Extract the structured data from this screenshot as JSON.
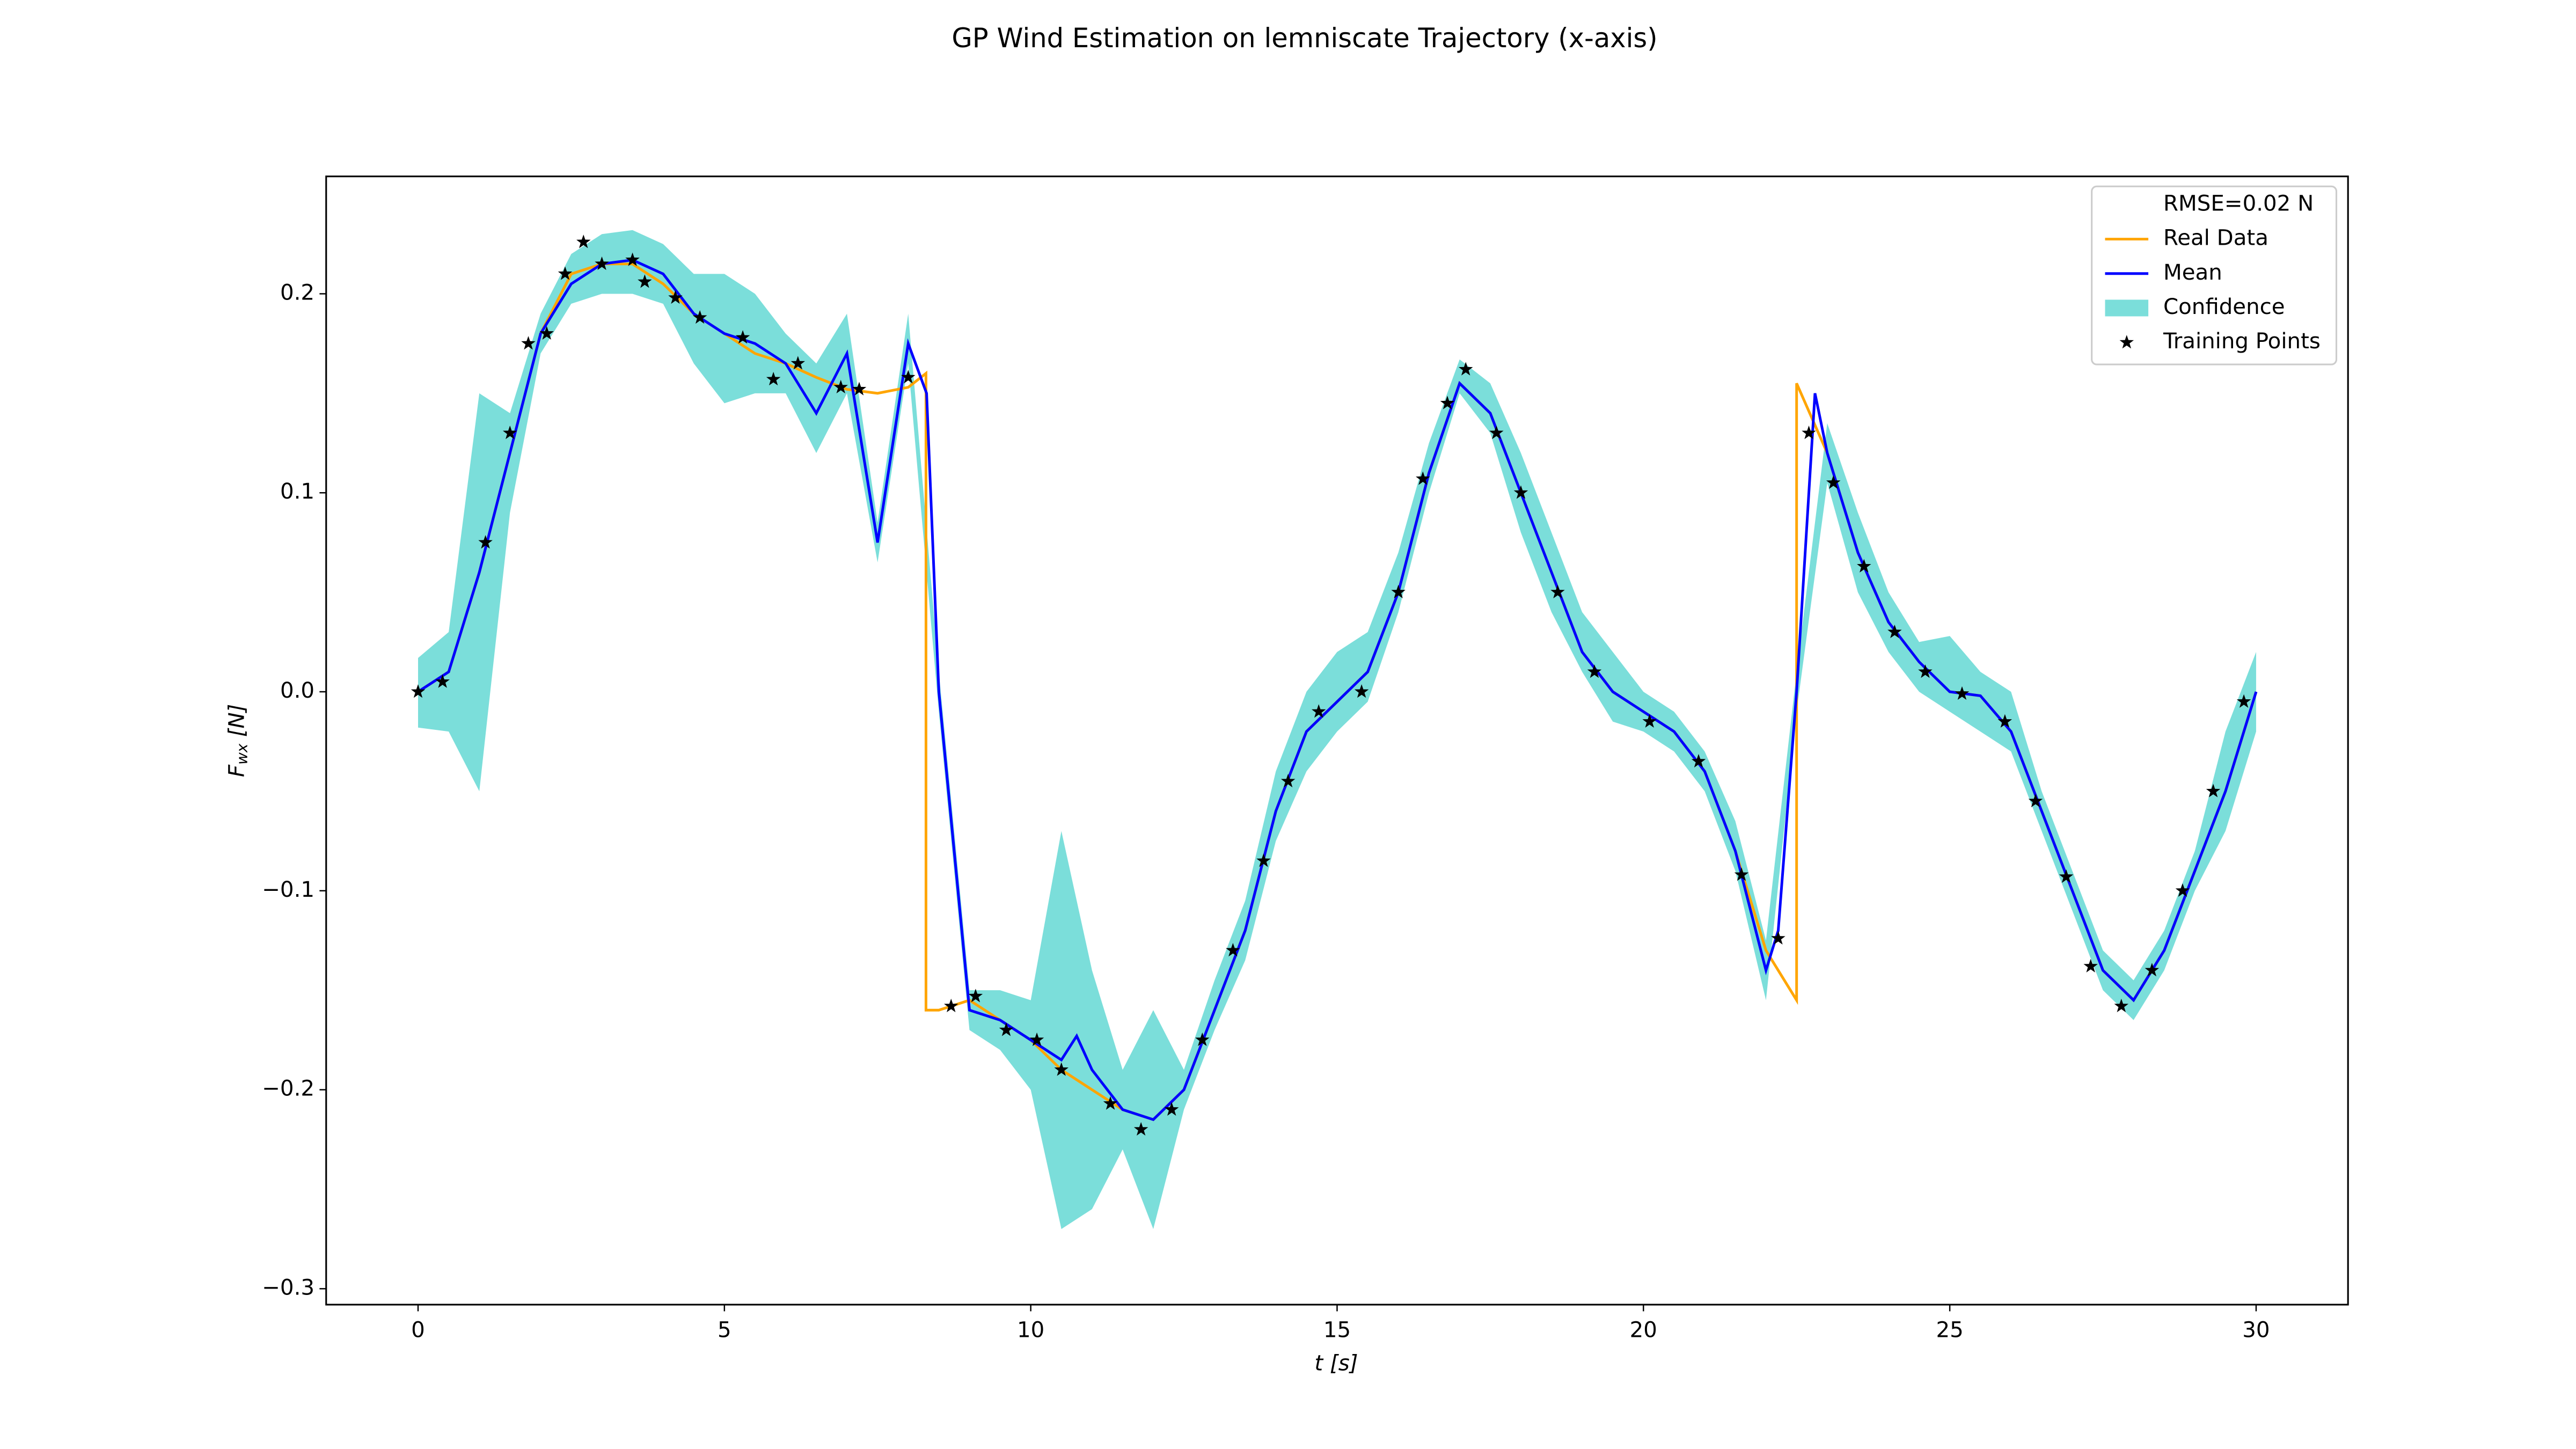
{
  "chart_data": {
    "type": "line",
    "title": "GP Wind Estimation on lemniscate Trajectory (x-axis)",
    "xlabel": "t [s]",
    "ylabel": {
      "symbol": "F",
      "subscript": "wx",
      "unit": "[N]"
    },
    "annotation": "RMSE=0.02 N",
    "legend": "upper right",
    "xlim": [
      -1.5,
      31.5
    ],
    "ylim": [
      -0.308,
      0.259
    ],
    "xticks": [
      0,
      5,
      10,
      15,
      20,
      25,
      30
    ],
    "yticks": [
      {
        "value": -0.3,
        "label": "−0.3"
      },
      {
        "value": -0.2,
        "label": "−0.2"
      },
      {
        "value": -0.1,
        "label": "−0.1"
      },
      {
        "value": 0,
        "label": "0.0"
      },
      0.1,
      0.2
    ],
    "series": [
      {
        "name": "Confidence",
        "style": "band",
        "color": "#48d1cc",
        "x": [
          0,
          0.5,
          1,
          1.5,
          2,
          2.5,
          3,
          3.5,
          4,
          4.5,
          5,
          5.5,
          6,
          6.5,
          7,
          7.5,
          8,
          8.5,
          9,
          9.5,
          10,
          10.5,
          11,
          11.5,
          12,
          12.5,
          13,
          13.5,
          14,
          14.5,
          15,
          15.5,
          16,
          16.5,
          17,
          17.5,
          18,
          18.5,
          19,
          19.5,
          20,
          20.5,
          21,
          21.5,
          22,
          22.5,
          23,
          23.5,
          24,
          24.5,
          25,
          25.5,
          26,
          26.5,
          27,
          27.5,
          28,
          28.5,
          29,
          29.5,
          30
        ],
        "upper": [
          0.017,
          0.03,
          0.15,
          0.14,
          0.19,
          0.22,
          0.23,
          0.232,
          0.225,
          0.21,
          0.21,
          0.2,
          0.18,
          0.165,
          0.19,
          0.085,
          0.19,
          0.01,
          -0.15,
          -0.15,
          -0.155,
          -0.07,
          -0.14,
          -0.19,
          -0.16,
          -0.19,
          -0.145,
          -0.105,
          -0.04,
          0,
          0.02,
          0.03,
          0.07,
          0.125,
          0.167,
          0.155,
          0.12,
          0.08,
          0.04,
          0.02,
          0,
          -0.01,
          -0.03,
          -0.065,
          -0.125,
          0.01,
          0.135,
          0.09,
          0.05,
          0.025,
          0.028,
          0.01,
          0,
          -0.05,
          -0.09,
          -0.13,
          -0.145,
          -0.12,
          -0.08,
          -0.02,
          0.02
        ],
        "lower": [
          -0.018,
          -0.02,
          -0.05,
          0.09,
          0.17,
          0.195,
          0.2,
          0.2,
          0.195,
          0.165,
          0.145,
          0.15,
          0.15,
          0.12,
          0.15,
          0.065,
          0.165,
          -0.01,
          -0.17,
          -0.18,
          -0.2,
          -0.27,
          -0.26,
          -0.23,
          -0.27,
          -0.21,
          -0.17,
          -0.135,
          -0.075,
          -0.04,
          -0.02,
          -0.005,
          0.04,
          0.1,
          0.15,
          0.13,
          0.08,
          0.04,
          0.01,
          -0.015,
          -0.02,
          -0.03,
          -0.05,
          -0.09,
          -0.155,
          -0.01,
          0.105,
          0.05,
          0.02,
          0,
          -0.01,
          -0.02,
          -0.03,
          -0.07,
          -0.11,
          -0.15,
          -0.165,
          -0.14,
          -0.1,
          -0.07,
          -0.02
        ]
      },
      {
        "name": "Real Data",
        "style": "line",
        "color": "#ffa500",
        "x": [
          0,
          0.5,
          1,
          1.5,
          2,
          2.5,
          3,
          3.5,
          4,
          4.5,
          5,
          5.5,
          6,
          6.5,
          7,
          7.5,
          8,
          8.29,
          8.29,
          8.5,
          9,
          9.5,
          10,
          10.5,
          11,
          11.5,
          12,
          12.5,
          13,
          13.5,
          14,
          14.5,
          15,
          15.5,
          16,
          16.5,
          17,
          17.5,
          18,
          18.5,
          19,
          19.5,
          20,
          20.5,
          21,
          21.5,
          22,
          22.5,
          22.5,
          23,
          23.5,
          24,
          24.5,
          25,
          25.5,
          26,
          26.5,
          27,
          27.5,
          28,
          28.5,
          29,
          29.5,
          30
        ],
        "values": [
          0,
          0.01,
          0.06,
          0.12,
          0.18,
          0.21,
          0.215,
          0.215,
          0.205,
          0.19,
          0.18,
          0.17,
          0.165,
          0.158,
          0.152,
          0.15,
          0.153,
          0.16,
          -0.16,
          -0.16,
          -0.155,
          -0.165,
          -0.175,
          -0.19,
          -0.2,
          -0.21,
          -0.215,
          -0.2,
          -0.16,
          -0.12,
          -0.06,
          -0.02,
          -0.005,
          0.01,
          0.05,
          0.11,
          0.155,
          0.14,
          0.1,
          0.06,
          0.02,
          0,
          -0.01,
          -0.02,
          -0.04,
          -0.08,
          -0.13,
          -0.155,
          0.155,
          0.12,
          0.07,
          0.035,
          0.015,
          0,
          -0.002,
          -0.02,
          -0.06,
          -0.1,
          -0.14,
          -0.155,
          -0.13,
          -0.09,
          -0.05,
          0
        ]
      },
      {
        "name": "Mean",
        "style": "line",
        "color": "#0000ff",
        "x": [
          0,
          0.5,
          1,
          1.5,
          2,
          2.5,
          3,
          3.5,
          4,
          4.5,
          5,
          5.5,
          6,
          6.5,
          7,
          7.5,
          8,
          8.3,
          8.5,
          9,
          9.5,
          10,
          10.5,
          10.75,
          11,
          11.5,
          12,
          12.5,
          13,
          13.5,
          14,
          14.5,
          15,
          15.5,
          16,
          16.5,
          17,
          17.5,
          18,
          18.5,
          19,
          19.5,
          20,
          20.5,
          21,
          21.5,
          22,
          22.2,
          22.5,
          22.8,
          23,
          23.5,
          24,
          24.5,
          25,
          25.5,
          26,
          26.5,
          27,
          27.5,
          28,
          28.5,
          29,
          29.5,
          30
        ],
        "values": [
          0,
          0.01,
          0.06,
          0.12,
          0.18,
          0.205,
          0.215,
          0.217,
          0.21,
          0.19,
          0.18,
          0.175,
          0.165,
          0.14,
          0.17,
          0.075,
          0.175,
          0.15,
          0,
          -0.16,
          -0.165,
          -0.175,
          -0.185,
          -0.173,
          -0.19,
          -0.21,
          -0.215,
          -0.2,
          -0.16,
          -0.12,
          -0.06,
          -0.02,
          -0.005,
          0.01,
          0.05,
          0.11,
          0.155,
          0.14,
          0.1,
          0.06,
          0.02,
          0,
          -0.01,
          -0.02,
          -0.04,
          -0.08,
          -0.14,
          -0.12,
          0,
          0.15,
          0.12,
          0.07,
          0.035,
          0.015,
          0,
          -0.002,
          -0.02,
          -0.06,
          -0.1,
          -0.14,
          -0.155,
          -0.13,
          -0.09,
          -0.05,
          0
        ]
      },
      {
        "name": "Training Points",
        "style": "scatter",
        "color": "#000000",
        "x": [
          0,
          0.4,
          1.1,
          1.5,
          1.8,
          2.1,
          2.4,
          2.7,
          3,
          3.5,
          3.7,
          4.2,
          4.6,
          5.3,
          5.8,
          6.2,
          6.9,
          7.2,
          8,
          8.7,
          9.1,
          9.6,
          10.1,
          10.5,
          11.3,
          11.8,
          12.3,
          12.8,
          13.3,
          13.8,
          14.2,
          14.7,
          15.4,
          16,
          16.4,
          16.8,
          17.1,
          17.6,
          18,
          18.6,
          19.2,
          20.1,
          20.9,
          21.6,
          22.2,
          22.7,
          23.1,
          23.6,
          24.1,
          24.6,
          25.2,
          25.9,
          26.4,
          26.9,
          27.3,
          27.8,
          28.3,
          28.8,
          29.3,
          29.8
        ],
        "values": [
          0,
          0.005,
          0.075,
          0.13,
          0.175,
          0.18,
          0.21,
          0.226,
          0.215,
          0.217,
          0.206,
          0.198,
          0.188,
          0.178,
          0.157,
          0.165,
          0.153,
          0.152,
          0.158,
          -0.158,
          -0.153,
          -0.17,
          -0.175,
          -0.19,
          -0.207,
          -0.22,
          -0.21,
          -0.175,
          -0.13,
          -0.085,
          -0.045,
          -0.01,
          0,
          0.05,
          0.107,
          0.145,
          0.162,
          0.13,
          0.1,
          0.05,
          0.01,
          -0.015,
          -0.035,
          -0.092,
          -0.124,
          0.13,
          0.105,
          0.063,
          0.03,
          0.01,
          -0.001,
          -0.015,
          -0.055,
          -0.093,
          -0.138,
          -0.158,
          -0.14,
          -0.1,
          -0.05,
          -0.005
        ]
      }
    ]
  }
}
